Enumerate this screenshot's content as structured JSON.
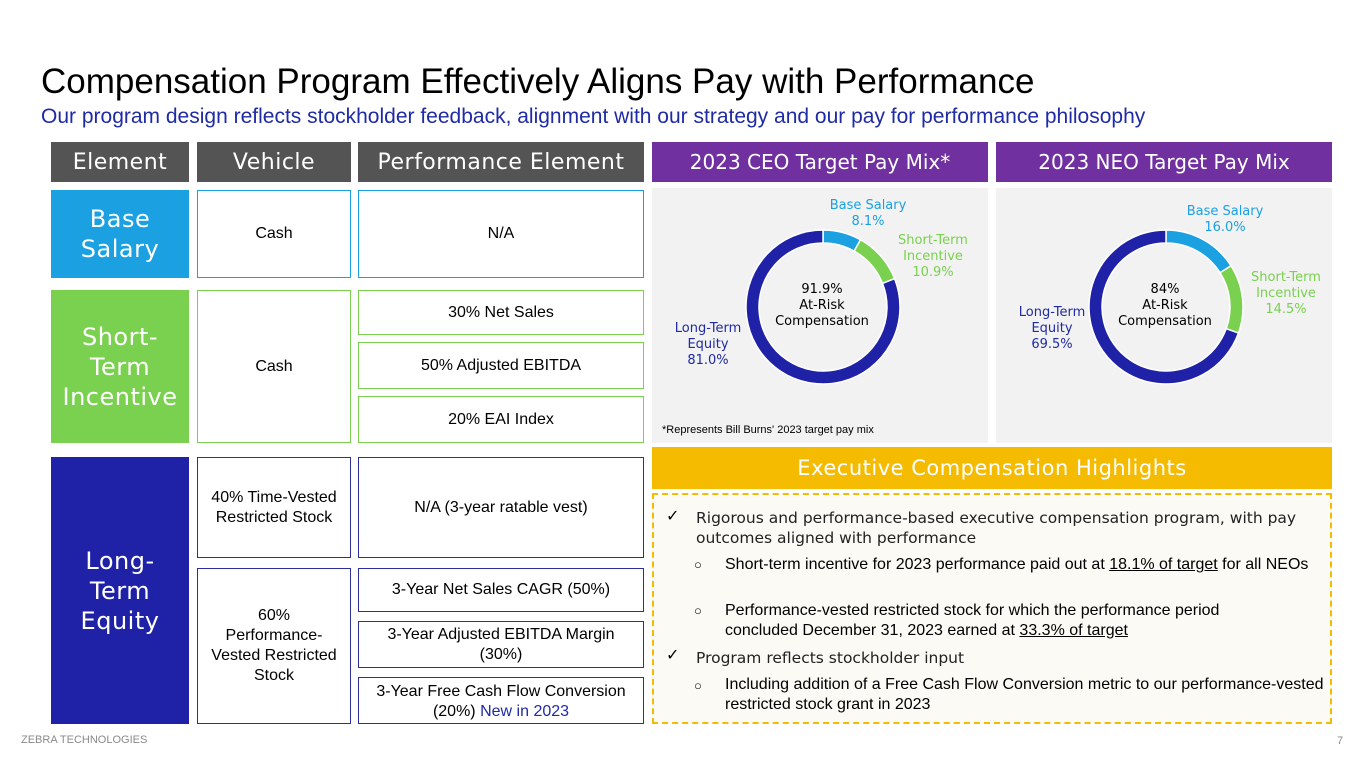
{
  "title": "Compensation Program Effectively Aligns Pay with Performance",
  "subtitle": "Our program design reflects stockholder feedback, alignment with our strategy and our pay for performance philosophy",
  "table": {
    "headers": [
      "Element",
      "Vehicle",
      "Performance Element"
    ],
    "base_salary": {
      "element": "Base Salary",
      "vehicle": "Cash",
      "performance": "N/A"
    },
    "short_term": {
      "element": "Short-Term Incentive",
      "vehicle": "Cash",
      "performance": [
        "30% Net Sales",
        "50% Adjusted EBITDA",
        "20% EAI Index"
      ]
    },
    "long_term": {
      "element": "Long-Term Equity",
      "vehicle_time": "40% Time-Vested Restricted Stock",
      "performance_time": "N/A (3-year ratable vest)",
      "vehicle_perf": "60% Performance-Vested Restricted Stock",
      "performance_perf": [
        "3-Year Net Sales CAGR (50%)",
        "3-Year Adjusted EBITDA Margin (30%)",
        "3-Year Free Cash Flow Conversion (20%)"
      ],
      "new_tag": "New in 2023"
    }
  },
  "colors": {
    "base": "#1ba1e2",
    "short": "#7ad04f",
    "long": "#1f22a6",
    "header": "#545454",
    "purple": "#7030a0",
    "gold": "#f4bb00"
  },
  "chart_data": [
    {
      "type": "pie",
      "title": "2023 CEO Target Pay Mix*",
      "categories": [
        "Base Salary",
        "Short-Term Incentive",
        "Long-Term Equity"
      ],
      "values": [
        8.1,
        10.9,
        81.0
      ],
      "value_labels": [
        "8.1%",
        "10.9%",
        "81.0%"
      ],
      "center_value": "91.9%",
      "center_label": "At-Risk Compensation",
      "footnote": "*Represents Bill Burns' 2023 target pay mix"
    },
    {
      "type": "pie",
      "title": "2023 NEO Target Pay Mix",
      "categories": [
        "Base Salary",
        "Short-Term Incentive",
        "Long-Term Equity"
      ],
      "values": [
        16.0,
        14.5,
        69.5
      ],
      "value_labels": [
        "16.0%",
        "14.5%",
        "69.5%"
      ],
      "center_value": "84%",
      "center_label": "At-Risk Compensation"
    }
  ],
  "highlights": {
    "title": "Executive Compensation Highlights",
    "check_icon": "✓",
    "bullet_icon": "○",
    "item1": "Rigorous and performance-based executive compensation program, with pay outcomes aligned with performance",
    "sub1a_pre": "Short-term incentive for 2023 performance paid out at ",
    "sub1a_u": "18.1% of target",
    "sub1a_post": " for all NEOs",
    "sub1b_pre": "Performance-vested restricted stock for which the performance period concluded December 31, 2023 earned at ",
    "sub1b_u": "33.3% of target",
    "item2": "Program reflects stockholder input",
    "sub2a": "Including addition of a Free Cash Flow Conversion metric to our performance-vested restricted stock grant in 2023"
  },
  "footer": {
    "company": "ZEBRA TECHNOLOGIES",
    "page": "7"
  }
}
